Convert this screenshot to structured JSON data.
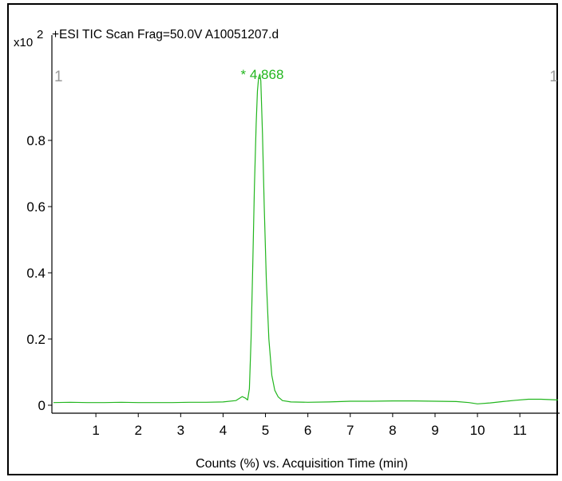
{
  "chart_data": {
    "type": "line",
    "title": "+ESI TIC Scan Frag=50.0V A10051207.d",
    "xlabel": "Counts (%) vs. Acquisition Time (min)",
    "ylabel": "",
    "y_multiplier": {
      "base": "x10",
      "exponent": "2"
    },
    "xlim": [
      0,
      11.9
    ],
    "ylim": [
      0,
      1
    ],
    "x_ticks": [
      1,
      2,
      3,
      4,
      5,
      6,
      7,
      8,
      9,
      10,
      11
    ],
    "y_ticks": [
      0,
      0.2,
      0.4,
      0.6,
      0.8
    ],
    "y_tick_labels": [
      "0",
      "0.2",
      "0.4",
      "0.6",
      "0.8"
    ],
    "grid": false,
    "series": [
      {
        "color": "#22b61e",
        "x": [
          0.0,
          0.4,
          0.8,
          1.2,
          1.6,
          2.0,
          2.4,
          2.8,
          3.2,
          3.6,
          4.0,
          4.3,
          4.45,
          4.52,
          4.58,
          4.62,
          4.66,
          4.7,
          4.74,
          4.78,
          4.81,
          4.84,
          4.868,
          4.89,
          4.93,
          4.97,
          5.02,
          5.08,
          5.15,
          5.22,
          5.3,
          5.4,
          5.6,
          6.0,
          6.5,
          7.0,
          7.5,
          8.0,
          8.5,
          9.0,
          9.5,
          9.8,
          10.0,
          10.3,
          10.6,
          10.9,
          11.2,
          11.5,
          11.9
        ],
        "y": [
          0.008,
          0.009,
          0.008,
          0.008,
          0.009,
          0.008,
          0.008,
          0.008,
          0.009,
          0.009,
          0.01,
          0.014,
          0.026,
          0.022,
          0.016,
          0.05,
          0.2,
          0.42,
          0.66,
          0.85,
          0.95,
          0.99,
          1.0,
          0.98,
          0.82,
          0.6,
          0.38,
          0.2,
          0.09,
          0.045,
          0.025,
          0.014,
          0.01,
          0.009,
          0.01,
          0.012,
          0.012,
          0.013,
          0.013,
          0.012,
          0.011,
          0.008,
          0.004,
          0.007,
          0.011,
          0.015,
          0.018,
          0.018,
          0.016
        ]
      }
    ],
    "annotations": [
      {
        "text": "* 4.868",
        "x": 4.868,
        "color": "#22b61e"
      }
    ],
    "edge_markers": [
      "1",
      "1"
    ]
  }
}
